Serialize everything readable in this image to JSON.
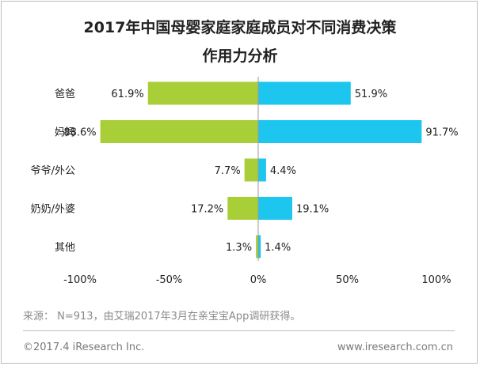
{
  "page": {
    "title_line1": "2017年中国母婴家庭家庭成员对不同消费决策",
    "title_line2": "作用力分析",
    "source": "来源： N=913，由艾瑞2017年3月在亲宝宝App调研获得。",
    "copyright": "©2017.4 iResearch Inc.",
    "website": "www.iresearch.com.cn"
  },
  "colors": {
    "left": "#a9cf38",
    "right": "#1cc6ee",
    "axis": "#9a9a9a"
  },
  "chart_data": {
    "type": "bar",
    "orientation": "horizontal-diverging",
    "title": "2017年中国母婴家庭家庭成员对不同消费决策作用力分析",
    "categories": [
      "爸爸",
      "妈妈",
      "爷爷/外公",
      "奶奶/外婆",
      "其他"
    ],
    "series": [
      {
        "color": "#a9cf38",
        "direction": "left",
        "values": [
          61.9,
          88.6,
          7.7,
          17.2,
          1.3
        ],
        "labels": [
          "61.9%",
          "88.6%",
          "7.7%",
          "17.2%",
          "1.3%"
        ]
      },
      {
        "color": "#1cc6ee",
        "direction": "right",
        "values": [
          51.9,
          91.7,
          4.4,
          19.1,
          1.4
        ],
        "labels": [
          "51.9%",
          "91.7%",
          "4.4%",
          "19.1%",
          "1.4%"
        ]
      }
    ],
    "xlim": [
      -100,
      100
    ],
    "xticks": [
      -100,
      -50,
      0,
      50,
      100
    ],
    "xtick_labels": [
      "-100%",
      "-50%",
      "0%",
      "50%",
      "100%"
    ],
    "grid": false,
    "legend": "none"
  }
}
